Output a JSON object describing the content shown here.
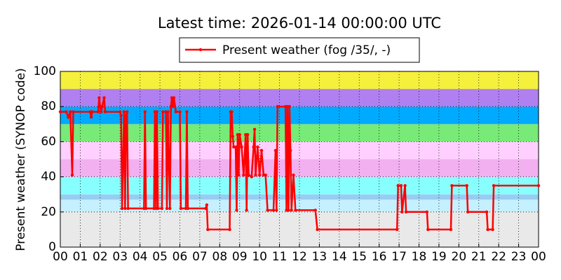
{
  "chart_data": {
    "type": "line",
    "title": "Latest time: 2026-01-14 00:00:00 UTC",
    "y_label": "Present weather (SYNOP code)",
    "x": [
      0,
      0.3,
      0.4,
      0.5,
      0.6,
      0.65,
      1.5,
      1.55,
      1.6,
      1.9,
      1.95,
      2.0,
      2.05,
      2.1,
      2.2,
      2.25,
      3.0,
      3.05,
      3.1,
      3.2,
      3.25,
      3.3,
      3.35,
      3.4,
      4.2,
      4.25,
      4.3,
      4.7,
      4.75,
      4.8,
      4.85,
      4.9,
      5.1,
      5.15,
      5.3,
      5.35,
      5.4,
      5.5,
      5.55,
      5.6,
      5.65,
      5.7,
      5.8,
      6.0,
      6.05,
      6.3,
      6.35,
      6.4,
      7.3,
      7.35,
      7.4,
      8.5,
      8.55,
      8.6,
      8.65,
      8.7,
      8.8,
      8.85,
      8.9,
      8.95,
      9.0,
      9.1,
      9.2,
      9.3,
      9.35,
      9.4,
      9.45,
      9.6,
      9.7,
      9.75,
      9.8,
      9.9,
      10.0,
      10.1,
      10.2,
      10.3,
      10.4,
      10.7,
      10.8,
      10.85,
      10.9,
      11.3,
      11.35,
      11.4,
      11.45,
      11.5,
      11.55,
      11.6,
      11.7,
      11.8,
      12.8,
      12.9,
      16.9,
      16.95,
      17.1,
      17.15,
      17.3,
      17.35,
      18.4,
      18.45,
      19.6,
      19.65,
      20.4,
      20.45,
      21.4,
      21.45,
      21.7,
      21.75,
      24
    ],
    "series": [
      {
        "name": "Present weather (fog /35/, -)",
        "color": "#ff0000",
        "values": [
          77,
          77,
          74,
          77,
          41,
          77,
          77,
          74,
          77,
          77,
          85,
          80,
          77,
          80,
          85,
          77,
          77,
          75,
          22,
          77,
          22,
          75,
          77,
          22,
          22,
          77,
          22,
          22,
          77,
          22,
          77,
          22,
          22,
          77,
          77,
          22,
          77,
          22,
          80,
          85,
          80,
          85,
          77,
          77,
          22,
          22,
          77,
          22,
          22,
          24,
          10,
          10,
          77,
          77,
          63,
          57,
          57,
          21,
          64,
          41,
          64,
          57,
          41,
          64,
          21,
          64,
          41,
          40,
          57,
          67,
          41,
          57,
          41,
          55,
          41,
          41,
          21,
          21,
          55,
          21,
          80,
          80,
          21,
          80,
          21,
          80,
          55,
          21,
          41,
          21,
          21,
          10,
          10,
          35,
          35,
          20,
          35,
          20,
          20,
          10,
          10,
          35,
          35,
          20,
          20,
          10,
          10,
          35,
          35
        ]
      }
    ],
    "bands": [
      {
        "from": 0,
        "to": 20,
        "color": "#e9e9e9"
      },
      {
        "from": 20,
        "to": 27,
        "color": "#c4f0ff"
      },
      {
        "from": 27,
        "to": 30,
        "color": "#99ccf2"
      },
      {
        "from": 30,
        "to": 40,
        "color": "#88ffff"
      },
      {
        "from": 40,
        "to": 50,
        "color": "#f2b0f0"
      },
      {
        "from": 50,
        "to": 60,
        "color": "#ffd0ff"
      },
      {
        "from": 60,
        "to": 70,
        "color": "#77ea77"
      },
      {
        "from": 70,
        "to": 80,
        "color": "#00aaff"
      },
      {
        "from": 80,
        "to": 90,
        "color": "#b080f0"
      },
      {
        "from": 90,
        "to": 100,
        "color": "#f5f03c"
      }
    ],
    "xlim": [
      0,
      24
    ],
    "xticks": [
      {
        "value": 0,
        "label": "00"
      },
      {
        "value": 1,
        "label": "01"
      },
      {
        "value": 2,
        "label": "02"
      },
      {
        "value": 3,
        "label": "03"
      },
      {
        "value": 4,
        "label": "04"
      },
      {
        "value": 5,
        "label": "05"
      },
      {
        "value": 6,
        "label": "06"
      },
      {
        "value": 7,
        "label": "07"
      },
      {
        "value": 8,
        "label": "08"
      },
      {
        "value": 9,
        "label": "09"
      },
      {
        "value": 10,
        "label": "10"
      },
      {
        "value": 11,
        "label": "11"
      },
      {
        "value": 12,
        "label": "12"
      },
      {
        "value": 13,
        "label": "13"
      },
      {
        "value": 14,
        "label": "14"
      },
      {
        "value": 15,
        "label": "15"
      },
      {
        "value": 16,
        "label": "16"
      },
      {
        "value": 17,
        "label": "17"
      },
      {
        "value": 18,
        "label": "18"
      },
      {
        "value": 19,
        "label": "19"
      },
      {
        "value": 20,
        "label": "20"
      },
      {
        "value": 21,
        "label": "21"
      },
      {
        "value": 22,
        "label": "22"
      },
      {
        "value": 23,
        "label": "23"
      },
      {
        "value": 24,
        "label": "00"
      }
    ],
    "ylim": [
      0,
      100
    ],
    "yticks": [
      0,
      20,
      40,
      60,
      80,
      100
    ],
    "grid": true
  }
}
